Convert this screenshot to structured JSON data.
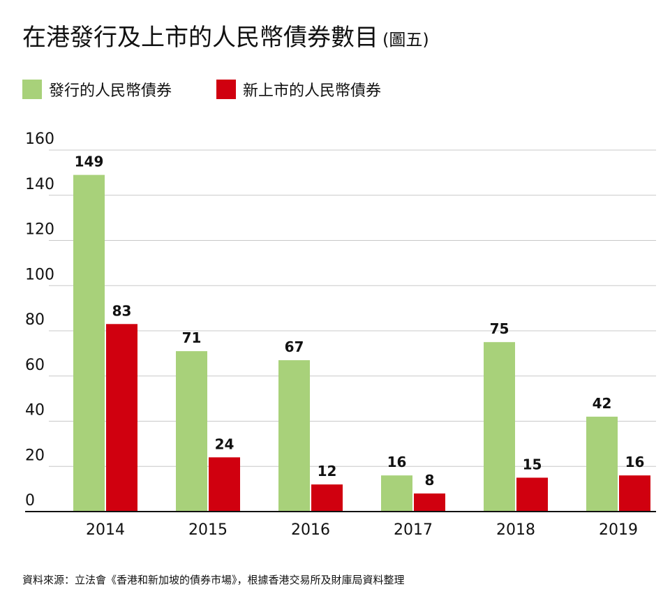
{
  "title": "在港發行及上市的人民幣債券數目",
  "subtitle": "(圖五)",
  "source": "資料來源：立法會《香港和新加坡的債券市場》，根據香港交易所及財庫局資料整理",
  "colors": {
    "green": "#a8d17a",
    "red": "#d0000f",
    "grid": "#c8c8c8",
    "axis": "#111111"
  },
  "chart_data": {
    "type": "bar",
    "categories": [
      "2014",
      "2015",
      "2016",
      "2017",
      "2018",
      "2019"
    ],
    "series": [
      {
        "name": "發行的人民幣債券",
        "color": "#a8d17a",
        "values": [
          149,
          71,
          67,
          16,
          75,
          42
        ]
      },
      {
        "name": "新上市的人民幣債券",
        "color": "#d0000f",
        "values": [
          83,
          24,
          12,
          8,
          15,
          16
        ]
      }
    ],
    "yticks": [
      "0",
      "20",
      "40",
      "60",
      "80",
      "100",
      "120",
      "140",
      "160"
    ],
    "ylim": [
      0,
      160
    ],
    "grid": true,
    "legend_position": "top-left"
  }
}
